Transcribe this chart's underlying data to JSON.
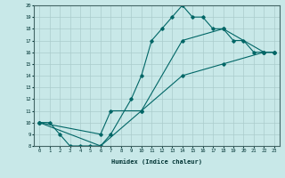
{
  "xlabel": "Humidex (Indice chaleur)",
  "ylabel": "",
  "bg_color": "#c8e8e8",
  "line_color": "#006666",
  "grid_color": "#aacccc",
  "xlim": [
    -0.5,
    23.5
  ],
  "ylim": [
    8,
    20
  ],
  "xticks": [
    0,
    1,
    2,
    3,
    4,
    5,
    6,
    7,
    8,
    9,
    10,
    11,
    12,
    13,
    14,
    15,
    16,
    17,
    18,
    19,
    20,
    21,
    22,
    23
  ],
  "yticks": [
    8,
    9,
    10,
    11,
    12,
    13,
    14,
    15,
    16,
    17,
    18,
    19,
    20
  ],
  "line1_x": [
    0,
    1,
    2,
    3,
    4,
    5,
    6,
    7,
    9,
    10,
    11,
    12,
    13,
    14,
    15,
    16,
    17,
    18,
    19,
    20,
    21,
    22,
    23
  ],
  "line1_y": [
    10,
    10,
    9,
    8,
    8,
    8,
    8,
    9,
    12,
    14,
    17,
    18,
    19,
    20,
    19,
    19,
    18,
    18,
    17,
    17,
    16,
    16,
    16
  ],
  "line2_x": [
    0,
    6,
    7,
    10,
    14,
    18,
    22,
    23
  ],
  "line2_y": [
    10,
    9,
    11,
    11,
    17,
    18,
    16,
    16
  ],
  "line3_x": [
    0,
    6,
    10,
    14,
    18,
    22,
    23
  ],
  "line3_y": [
    10,
    8,
    11,
    14,
    15,
    16,
    16
  ]
}
